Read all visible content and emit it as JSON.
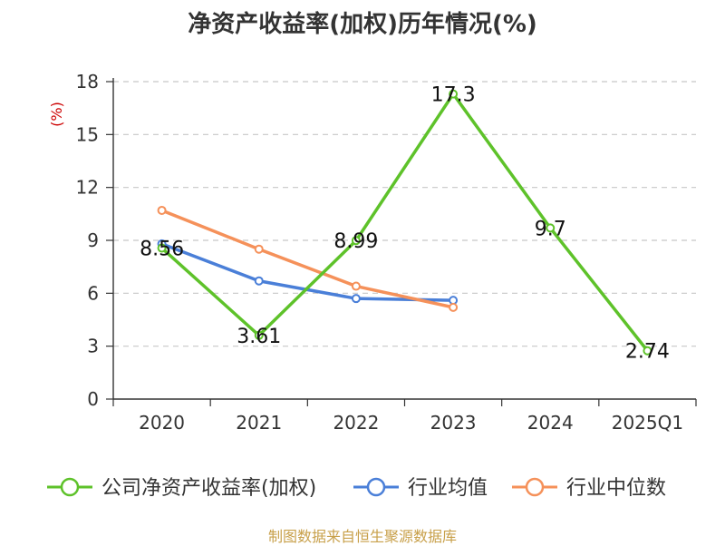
{
  "chart_data": {
    "type": "line",
    "title": "净资产收益率(加权)历年情况(%)",
    "ylabel": "(%)",
    "categories": [
      "2020",
      "2021",
      "2022",
      "2023",
      "2024",
      "2025Q1"
    ],
    "yticks": [
      "0",
      "3",
      "6",
      "9",
      "12",
      "15",
      "18"
    ],
    "ylim": [
      0,
      18
    ],
    "grid": true,
    "legend_position": "bottom",
    "series": [
      {
        "name": "公司净资产收益率(加权)",
        "color": "#5ec22a",
        "values": [
          8.56,
          3.61,
          8.99,
          17.3,
          9.7,
          2.74
        ],
        "labels": [
          "8.56",
          "3.61",
          "8.99",
          "17.3",
          "9.7",
          "2.74"
        ]
      },
      {
        "name": "行业均值",
        "color": "#4a7fd8",
        "values": [
          8.8,
          6.7,
          5.7,
          5.6,
          null,
          null
        ]
      },
      {
        "name": "行业中位数",
        "color": "#f5915a",
        "values": [
          10.7,
          8.5,
          6.4,
          5.2,
          null,
          null
        ]
      }
    ]
  },
  "footer": {
    "source": "制图数据来自恒生聚源数据库"
  }
}
